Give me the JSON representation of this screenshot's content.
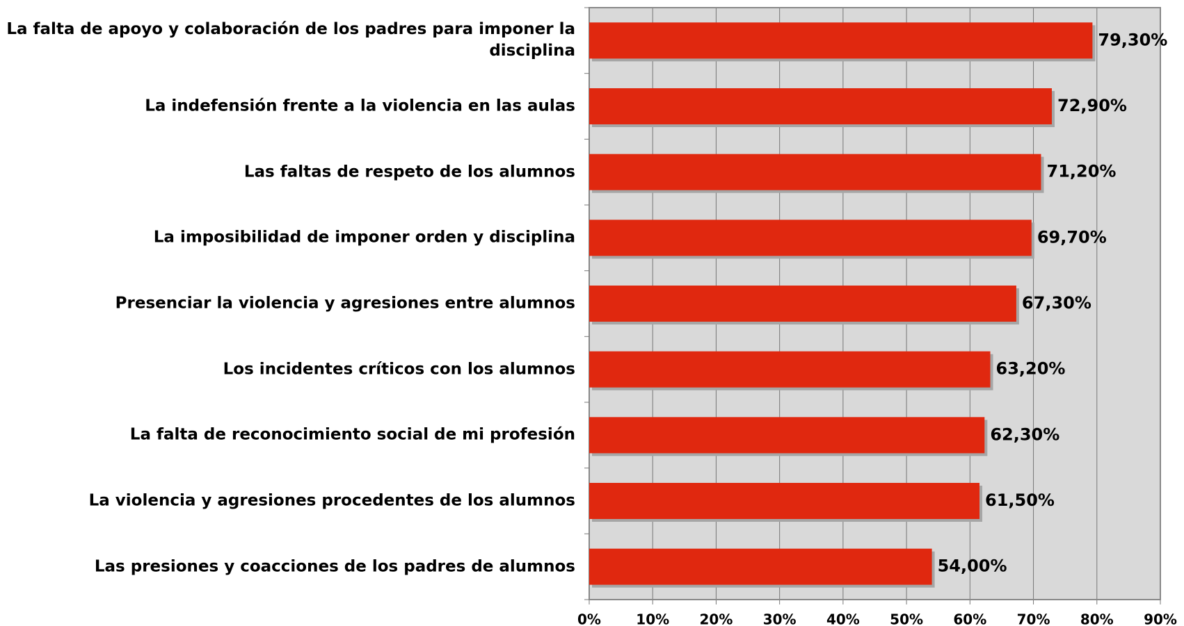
{
  "chart_data": {
    "type": "barh",
    "categories": [
      "La falta de apoyo y colaboración de los padres para imponer la disciplina",
      "La indefensión frente a la violencia en las aulas",
      "Las faltas de respeto de los alumnos",
      "La imposibilidad de imponer orden y disciplina",
      "Presenciar la violencia y agresiones entre alumnos",
      "Los incidentes críticos con los alumnos",
      "La falta de reconocimiento social de mi profesión",
      "La violencia y agresiones procedentes de los alumnos",
      "Las presiones y coacciones de los padres de alumnos"
    ],
    "values": [
      79.3,
      72.9,
      71.2,
      69.7,
      67.3,
      63.2,
      62.3,
      61.5,
      54.0
    ],
    "value_labels": [
      "79,30%",
      "72,90%",
      "71,20%",
      "69,70%",
      "67,30%",
      "63,20%",
      "62,30%",
      "61,50%",
      "54,00%"
    ],
    "color": "#e0280f",
    "xlim": [
      0,
      90
    ],
    "xticks": [
      {
        "value": 0,
        "label": "0%"
      },
      {
        "value": 10,
        "label": "10%"
      },
      {
        "value": 20,
        "label": "20%"
      },
      {
        "value": 30,
        "label": "30%"
      },
      {
        "value": 40,
        "label": "40%"
      },
      {
        "value": 50,
        "label": "50%"
      },
      {
        "value": 60,
        "label": "60%"
      },
      {
        "value": 70,
        "label": "70%"
      },
      {
        "value": 80,
        "label": "80%"
      },
      {
        "value": 90,
        "label": "90%"
      }
    ],
    "grid": true
  }
}
